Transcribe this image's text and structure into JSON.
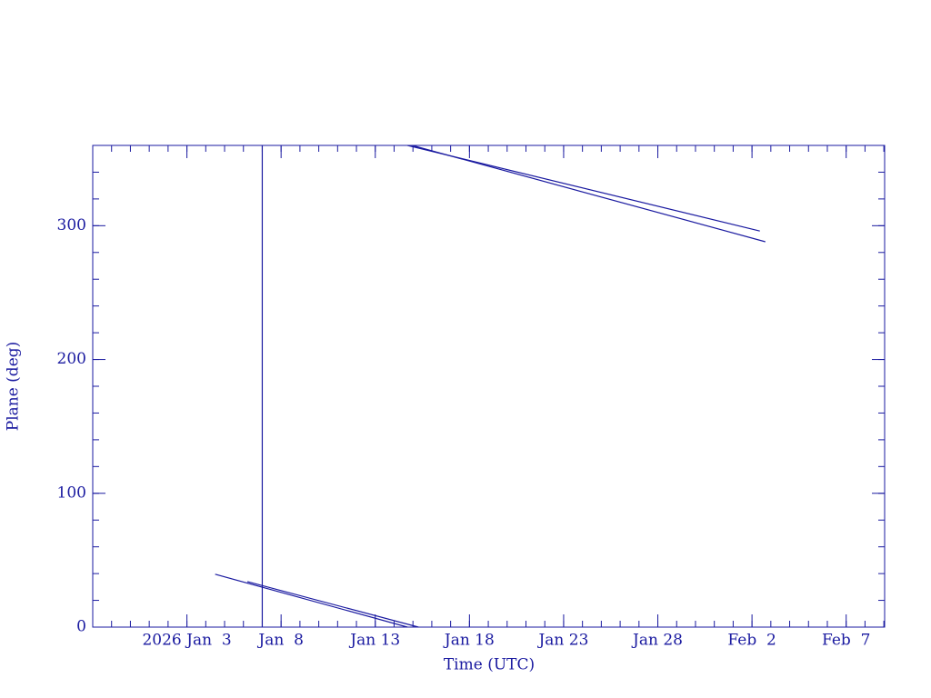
{
  "chart_data": {
    "type": "line",
    "xlabel": "Time (UTC)",
    "ylabel": "Plane (deg)",
    "xlim": [
      "2025-12-29T00:00",
      "2026-02-09T01:00"
    ],
    "xticks": [
      {
        "value": "2026-01-03T00:00",
        "label": "2026 Jan  3"
      },
      {
        "value": "2026-01-08T00:00",
        "label": "Jan  8"
      },
      {
        "value": "2026-01-13T00:00",
        "label": "Jan 13"
      },
      {
        "value": "2026-01-18T00:00",
        "label": "Jan 18"
      },
      {
        "value": "2026-01-23T00:00",
        "label": "Jan 23"
      },
      {
        "value": "2026-01-28T00:00",
        "label": "Jan 28"
      },
      {
        "value": "2026-02-02T00:00",
        "label": "Feb  2"
      },
      {
        "value": "2026-02-07T00:00",
        "label": "Feb  7"
      }
    ],
    "ylim": [
      0,
      360
    ],
    "yticks": [
      0,
      100,
      200,
      300
    ],
    "series": [
      {
        "color": "#1a1aa0",
        "x": [
          "2026-01-07T00:00",
          "2026-01-07T00:00"
        ],
        "values": [
          0,
          360
        ]
      },
      {
        "color": "#1a1aa0",
        "x": [
          "2026-01-04T12:00",
          "2026-01-14T17:00",
          null,
          "2026-01-14T17:00",
          "2026-02-02T10:00"
        ],
        "values": [
          39.5,
          0,
          null,
          360,
          296
        ]
      },
      {
        "color": "#1a1aa0",
        "x": [
          "2026-01-06T05:00",
          "2026-01-15T07:00",
          null,
          "2026-01-14T23:00",
          "2026-02-02T17:00"
        ],
        "values": [
          34,
          0,
          null,
          360,
          288
        ]
      }
    ]
  }
}
